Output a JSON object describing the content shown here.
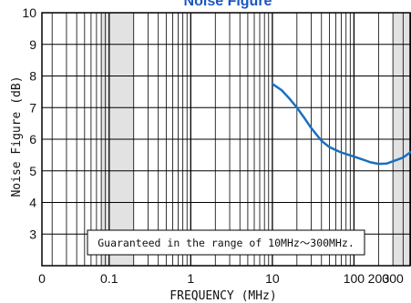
{
  "chart_data": {
    "type": "line",
    "title": "Noise Figure",
    "xlabel": "FREQUENCY (MHz)",
    "ylabel": "Noise Figure (dB)",
    "x_scale": "log",
    "xlim": [
      0.015,
      500
    ],
    "ylim": [
      2,
      10
    ],
    "x_tick_labels": [
      "0",
      "0.1",
      "1",
      "10",
      "100",
      "200",
      "300"
    ],
    "y_tick_labels": [
      "3",
      "4",
      "5",
      "6",
      "7",
      "8",
      "9",
      "10"
    ],
    "grid": true,
    "annotation": "Guaranteed in the range of 10MHz～300MHz.",
    "line_color": "#1a6fc0",
    "shaded_regions_color": "#e2e2e2",
    "series": [
      {
        "x": [
          10,
          13,
          16,
          20,
          25,
          30,
          40,
          50,
          70,
          100,
          130,
          160,
          200,
          250,
          300,
          400,
          500
        ],
        "y": [
          7.75,
          7.55,
          7.3,
          7.0,
          6.65,
          6.35,
          5.95,
          5.75,
          5.58,
          5.45,
          5.35,
          5.27,
          5.22,
          5.23,
          5.3,
          5.42,
          5.6
        ]
      }
    ]
  }
}
